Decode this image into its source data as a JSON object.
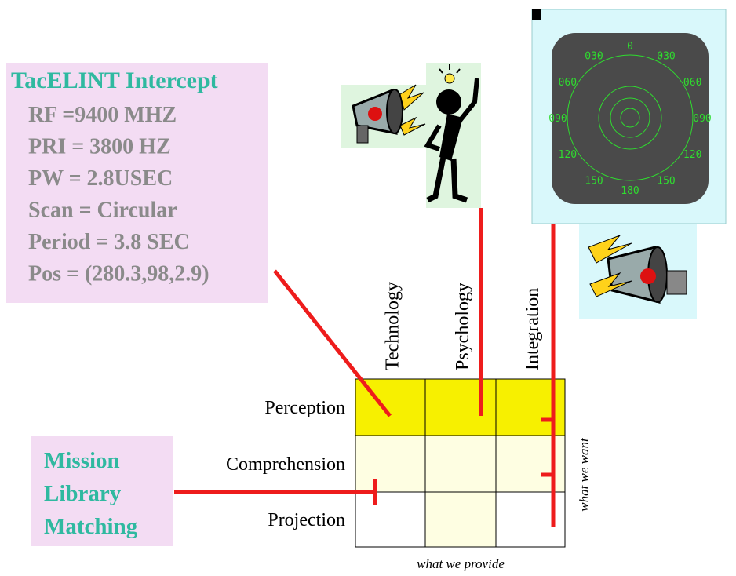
{
  "intercept": {
    "title": "TacELINT Intercept",
    "lines": [
      "RF =9400 MHZ",
      "PRI = 3800 HZ",
      "PW = 2.8USEC",
      "Scan = Circular",
      "Period = 3.8 SEC",
      "Pos = (280.3,98,2.9)"
    ]
  },
  "mission": {
    "lines": [
      "Mission",
      "Library",
      "Matching"
    ]
  },
  "matrix": {
    "columns": [
      "Technology",
      "Psychology",
      "Integration"
    ],
    "rows": [
      "Perception",
      "Comprehension",
      "Projection"
    ],
    "x_label": "what we provide",
    "y_label": "what we want"
  },
  "radar": {
    "labels": [
      "0",
      "030",
      "060",
      "090",
      "120",
      "150",
      "180",
      "150",
      "120",
      "090",
      "060",
      "030"
    ]
  }
}
